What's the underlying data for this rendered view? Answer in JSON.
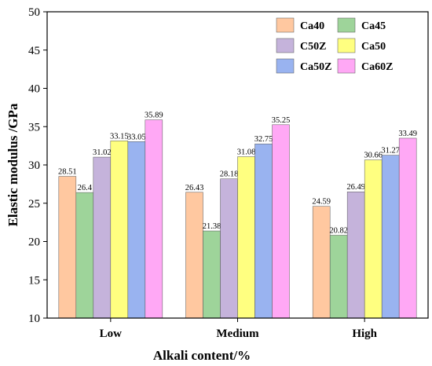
{
  "chart_data": {
    "type": "bar",
    "title": "",
    "xlabel": "Alkali content/%",
    "ylabel": "Elastic modulus /GPa",
    "ylim": [
      10,
      50
    ],
    "yticks": [
      10,
      15,
      20,
      25,
      30,
      35,
      40,
      45,
      50
    ],
    "categories": [
      "Low",
      "Medium",
      "High"
    ],
    "legend_position": "top-right",
    "grid": false,
    "series": [
      {
        "name": "Ca40",
        "color": "#FFC8A0",
        "values": [
          28.51,
          26.43,
          24.59
        ],
        "labels": [
          "28.51",
          "26.43",
          "24.59"
        ]
      },
      {
        "name": "Ca45",
        "color": "#9ED49A",
        "values": [
          26.4,
          21.38,
          20.82
        ],
        "labels": [
          "26.4",
          "21.38",
          "20.82"
        ]
      },
      {
        "name": "C50Z",
        "color": "#C5B3DB",
        "values": [
          31.02,
          28.18,
          26.49
        ],
        "labels": [
          "31.02",
          "28.18",
          "26.49"
        ]
      },
      {
        "name": "Ca50",
        "color": "#FFFF80",
        "values": [
          33.15,
          31.08,
          30.66
        ],
        "labels": [
          "33.15",
          "31.08",
          "30.66"
        ]
      },
      {
        "name": "Ca50Z",
        "color": "#99B3F0",
        "values": [
          33.05,
          32.75,
          31.27
        ],
        "labels": [
          "33.05",
          "32.75",
          "31.27"
        ]
      },
      {
        "name": "Ca60Z",
        "color": "#FFA8F5",
        "values": [
          35.89,
          35.25,
          33.49
        ],
        "labels": [
          "35.89",
          "35.25",
          "33.49"
        ]
      }
    ]
  }
}
